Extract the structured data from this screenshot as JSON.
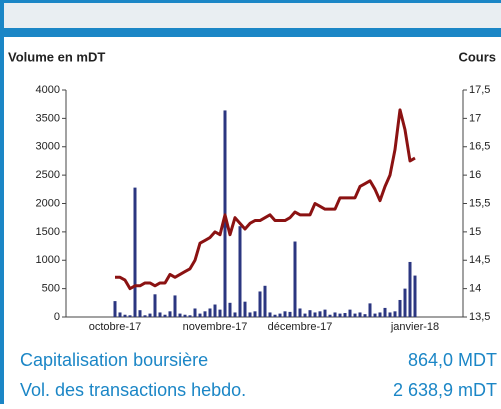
{
  "chart_data": {
    "type": "combo",
    "left_axis_label": "Volume en mDT",
    "right_axis_label": "Cours",
    "categories": [
      "octobre-17",
      null,
      null,
      null,
      null,
      null,
      null,
      null,
      null,
      null,
      null,
      null,
      null,
      null,
      null,
      null,
      null,
      null,
      null,
      null,
      "novembre-17",
      null,
      null,
      null,
      null,
      null,
      null,
      null,
      null,
      null,
      null,
      null,
      null,
      null,
      null,
      null,
      null,
      "décembre-17",
      null,
      null,
      null,
      null,
      null,
      null,
      null,
      null,
      null,
      null,
      null,
      null,
      null,
      null,
      null,
      null,
      null,
      null,
      null,
      null,
      null,
      null,
      "janvier-18"
    ],
    "series": [
      {
        "name": "Volume",
        "type": "bar",
        "axis": "y",
        "color": "#2b3680",
        "values": [
          280,
          80,
          40,
          30,
          2280,
          120,
          30,
          60,
          400,
          80,
          40,
          100,
          380,
          60,
          40,
          30,
          150,
          60,
          100,
          150,
          220,
          130,
          3640,
          250,
          80,
          1600,
          270,
          80,
          100,
          450,
          550,
          80,
          40,
          60,
          100,
          90,
          1330,
          150,
          60,
          120,
          80,
          100,
          130,
          40,
          80,
          60,
          70,
          130,
          60,
          80,
          50,
          240,
          60,
          80,
          160,
          80,
          100,
          300,
          500,
          970,
          730
        ]
      },
      {
        "name": "Cours",
        "type": "line",
        "axis": "y2",
        "color": "#8b1212",
        "values": [
          14.2,
          14.2,
          14.15,
          14.0,
          14.05,
          14.05,
          14.1,
          14.1,
          14.05,
          14.1,
          14.1,
          14.25,
          14.2,
          14.25,
          14.3,
          14.35,
          14.5,
          14.8,
          14.85,
          14.9,
          15.0,
          14.95,
          15.3,
          14.95,
          15.25,
          15.15,
          15.05,
          15.15,
          15.2,
          15.2,
          15.25,
          15.3,
          15.2,
          15.2,
          15.2,
          15.25,
          15.35,
          15.3,
          15.3,
          15.3,
          15.5,
          15.45,
          15.4,
          15.4,
          15.4,
          15.6,
          15.6,
          15.6,
          15.6,
          15.8,
          15.85,
          15.9,
          15.75,
          15.55,
          15.8,
          16.0,
          16.45,
          17.15,
          16.8,
          16.25,
          16.3
        ]
      }
    ],
    "ylim": [
      0,
      4000
    ],
    "yticks": [
      0,
      500,
      1000,
      1500,
      2000,
      2500,
      3000,
      3500,
      4000
    ],
    "y2lim": [
      13.5,
      17.5
    ],
    "y2ticks": [
      {
        "value": 13.5,
        "label": "13,5"
      },
      {
        "value": 14,
        "label": "14"
      },
      {
        "value": 14.5,
        "label": "14,5"
      },
      {
        "value": 15,
        "label": "15"
      },
      {
        "value": 15.5,
        "label": "15,5"
      },
      {
        "value": 16,
        "label": "16"
      },
      {
        "value": 16.5,
        "label": "16,5"
      },
      {
        "value": 17,
        "label": "17"
      },
      {
        "value": 17.5,
        "label": "17,5"
      }
    ]
  },
  "footer": {
    "rows": [
      {
        "label": "Capitalisation boursière",
        "value": "864,0 MDT"
      },
      {
        "label": "Vol. des transactions hebdo.",
        "value": "2 638,9 mDT"
      }
    ]
  }
}
